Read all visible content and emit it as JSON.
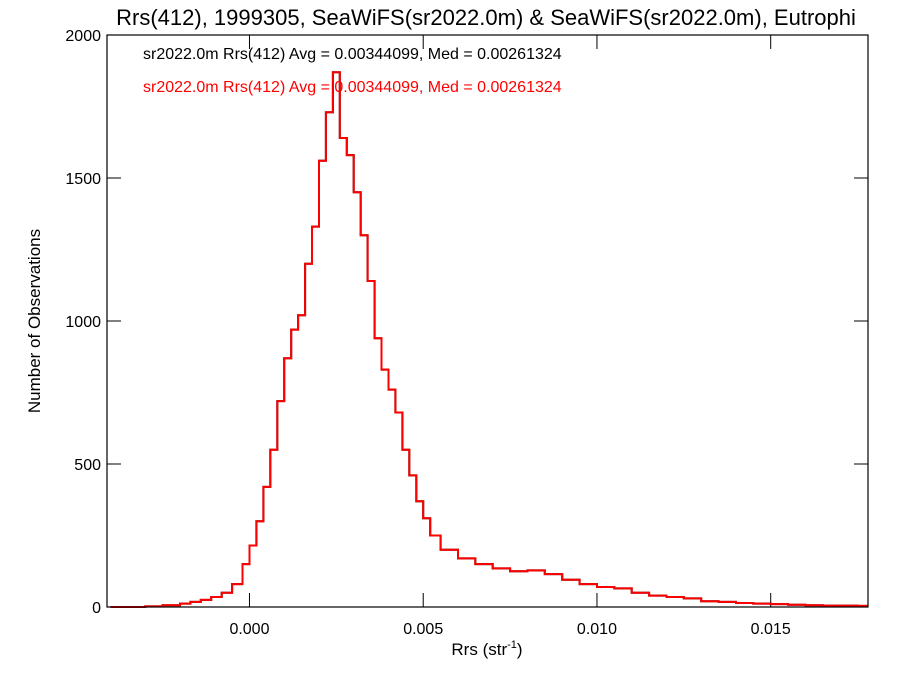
{
  "chart_data": {
    "type": "line",
    "title": "Rrs(412), 1999305, SeaWiFS(sr2022.0m) & SeaWiFS(sr2022.0m), Eutrophi",
    "xlabel": "Rrs (str",
    "xlabel_sup": "-1",
    "xlabel_close": ")",
    "ylabel": "Number of Observations",
    "xlim": [
      -0.0041,
      0.0178
    ],
    "ylim": [
      0,
      2000
    ],
    "x_ticks": [
      0.0,
      0.005,
      0.01,
      0.015
    ],
    "x_tick_labels": [
      "0.000",
      "0.005",
      "0.010",
      "0.015"
    ],
    "y_ticks": [
      0,
      500,
      1000,
      1500,
      2000
    ],
    "y_tick_labels": [
      "0",
      "500",
      "1000",
      "1500",
      "2000"
    ],
    "legend_position": "top-left",
    "annotations": [
      {
        "text": "sr2022.0m Rrs(412) Avg = 0.00344099, Med = 0.00261324",
        "color": "#000000"
      },
      {
        "text": "sr2022.0m Rrs(412) Avg = 0.00344099, Med = 0.00261324",
        "color": "#ff0000"
      }
    ],
    "series": [
      {
        "color": "#000000",
        "style": "step",
        "points": [
          [
            -0.004,
            0
          ],
          [
            -0.0035,
            0
          ],
          [
            -0.003,
            2
          ],
          [
            -0.0025,
            6
          ],
          [
            -0.002,
            12
          ],
          [
            -0.0017,
            18
          ],
          [
            -0.0014,
            25
          ],
          [
            -0.0011,
            35
          ],
          [
            -0.0008,
            50
          ],
          [
            -0.0005,
            80
          ],
          [
            -0.0002,
            150
          ],
          [
            0.0,
            215
          ],
          [
            0.0002,
            300
          ],
          [
            0.0004,
            420
          ],
          [
            0.0006,
            550
          ],
          [
            0.0008,
            720
          ],
          [
            0.001,
            870
          ],
          [
            0.0012,
            970
          ],
          [
            0.0014,
            1020
          ],
          [
            0.0016,
            1200
          ],
          [
            0.0018,
            1330
          ],
          [
            0.002,
            1560
          ],
          [
            0.0022,
            1730
          ],
          [
            0.0024,
            1870
          ],
          [
            0.0026,
            1640
          ],
          [
            0.0028,
            1580
          ],
          [
            0.003,
            1450
          ],
          [
            0.0032,
            1300
          ],
          [
            0.0034,
            1140
          ],
          [
            0.0036,
            940
          ],
          [
            0.0038,
            830
          ],
          [
            0.004,
            760
          ],
          [
            0.0042,
            680
          ],
          [
            0.0044,
            550
          ],
          [
            0.0046,
            460
          ],
          [
            0.0048,
            370
          ],
          [
            0.005,
            310
          ],
          [
            0.0052,
            250
          ],
          [
            0.0055,
            200
          ],
          [
            0.006,
            170
          ],
          [
            0.0065,
            150
          ],
          [
            0.007,
            135
          ],
          [
            0.0075,
            125
          ],
          [
            0.008,
            128
          ],
          [
            0.0085,
            115
          ],
          [
            0.009,
            95
          ],
          [
            0.0095,
            80
          ],
          [
            0.01,
            70
          ],
          [
            0.0105,
            65
          ],
          [
            0.011,
            50
          ],
          [
            0.0115,
            40
          ],
          [
            0.012,
            35
          ],
          [
            0.0125,
            30
          ],
          [
            0.013,
            20
          ],
          [
            0.0135,
            18
          ],
          [
            0.014,
            14
          ],
          [
            0.0145,
            12
          ],
          [
            0.015,
            10
          ],
          [
            0.0155,
            8
          ],
          [
            0.016,
            6
          ],
          [
            0.0165,
            5
          ],
          [
            0.017,
            5
          ],
          [
            0.0175,
            4
          ]
        ]
      },
      {
        "color": "#ff0000",
        "style": "step",
        "points": [
          [
            -0.004,
            0
          ],
          [
            -0.0035,
            0
          ],
          [
            -0.003,
            2
          ],
          [
            -0.0025,
            6
          ],
          [
            -0.002,
            12
          ],
          [
            -0.0017,
            18
          ],
          [
            -0.0014,
            25
          ],
          [
            -0.0011,
            35
          ],
          [
            -0.0008,
            50
          ],
          [
            -0.0005,
            80
          ],
          [
            -0.0002,
            150
          ],
          [
            0.0,
            215
          ],
          [
            0.0002,
            300
          ],
          [
            0.0004,
            420
          ],
          [
            0.0006,
            550
          ],
          [
            0.0008,
            720
          ],
          [
            0.001,
            870
          ],
          [
            0.0012,
            970
          ],
          [
            0.0014,
            1020
          ],
          [
            0.0016,
            1200
          ],
          [
            0.0018,
            1330
          ],
          [
            0.002,
            1560
          ],
          [
            0.0022,
            1730
          ],
          [
            0.0024,
            1870
          ],
          [
            0.0026,
            1640
          ],
          [
            0.0028,
            1580
          ],
          [
            0.003,
            1450
          ],
          [
            0.0032,
            1300
          ],
          [
            0.0034,
            1140
          ],
          [
            0.0036,
            940
          ],
          [
            0.0038,
            830
          ],
          [
            0.004,
            760
          ],
          [
            0.0042,
            680
          ],
          [
            0.0044,
            550
          ],
          [
            0.0046,
            460
          ],
          [
            0.0048,
            370
          ],
          [
            0.005,
            310
          ],
          [
            0.0052,
            250
          ],
          [
            0.0055,
            200
          ],
          [
            0.006,
            170
          ],
          [
            0.0065,
            150
          ],
          [
            0.007,
            135
          ],
          [
            0.0075,
            125
          ],
          [
            0.008,
            128
          ],
          [
            0.0085,
            115
          ],
          [
            0.009,
            95
          ],
          [
            0.0095,
            80
          ],
          [
            0.01,
            70
          ],
          [
            0.0105,
            65
          ],
          [
            0.011,
            50
          ],
          [
            0.0115,
            40
          ],
          [
            0.012,
            35
          ],
          [
            0.0125,
            30
          ],
          [
            0.013,
            20
          ],
          [
            0.0135,
            18
          ],
          [
            0.014,
            14
          ],
          [
            0.0145,
            12
          ],
          [
            0.015,
            10
          ],
          [
            0.0155,
            8
          ],
          [
            0.016,
            6
          ],
          [
            0.0165,
            5
          ],
          [
            0.017,
            5
          ],
          [
            0.0175,
            4
          ]
        ]
      }
    ]
  }
}
